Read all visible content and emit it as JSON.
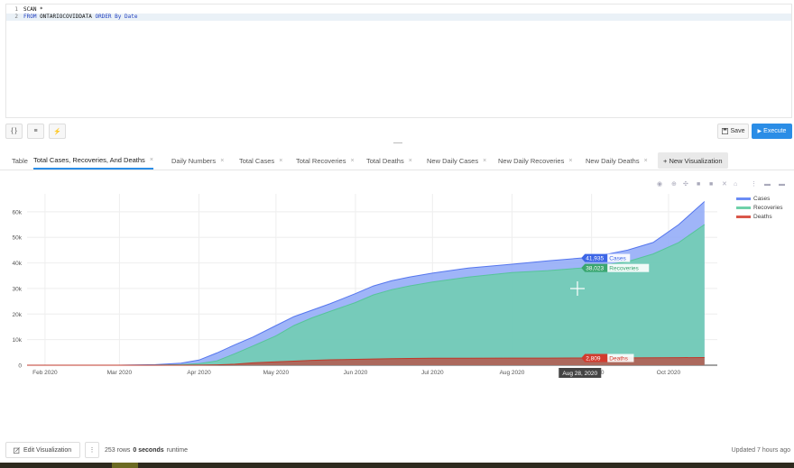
{
  "editor": {
    "lines": [
      {
        "num": "1",
        "tokens": [
          {
            "t": "SCAN *",
            "c": "ident"
          }
        ]
      },
      {
        "num": "2",
        "tokens": [
          {
            "t": "FROM ",
            "c": "kw"
          },
          {
            "t": "ONTARIOCOVIDDATA ",
            "c": "ident"
          },
          {
            "t": "ORDER By Date",
            "c": "kw"
          }
        ]
      }
    ]
  },
  "toolbar": {
    "format_label": "{ }",
    "indent_label": "≡",
    "autocomplete_label": "⚡",
    "save_label": "Save",
    "execute_label": "Execute"
  },
  "tabs": [
    {
      "label": "Table",
      "closable": false
    },
    {
      "label": "Total Cases, Recoveries, And Deaths",
      "closable": true,
      "active": true
    },
    {
      "label": "Daily Numbers",
      "closable": true
    },
    {
      "label": "Total Cases",
      "closable": true
    },
    {
      "label": "Total Recoveries",
      "closable": true
    },
    {
      "label": "Total Deaths",
      "closable": true
    },
    {
      "label": "New Daily Cases",
      "closable": true
    },
    {
      "label": "New Daily Recoveries",
      "closable": true
    },
    {
      "label": "New Daily Deaths",
      "closable": true
    }
  ],
  "new_viz_label": "+ New Visualization",
  "modebar_icons": [
    "camera-icon",
    "zoom-icon",
    "pan-icon",
    "zoom-in-icon",
    "zoom-out-icon",
    "autoscale-icon",
    "reset-axes-icon",
    "spike-lines-icon",
    "hover-closest-icon",
    "hover-compare-icon"
  ],
  "colors": {
    "cases": "#6b8cf5",
    "recoveries": "#6fd1a9",
    "deaths": "#d9574a",
    "accent": "#2b8de6"
  },
  "chart_data": {
    "type": "area",
    "x": [
      "2020-01-25",
      "2020-02-15",
      "2020-03-01",
      "2020-03-15",
      "2020-03-25",
      "2020-04-01",
      "2020-04-08",
      "2020-04-15",
      "2020-04-22",
      "2020-05-01",
      "2020-05-08",
      "2020-05-15",
      "2020-05-22",
      "2020-06-01",
      "2020-06-08",
      "2020-06-15",
      "2020-06-22",
      "2020-07-01",
      "2020-07-15",
      "2020-08-01",
      "2020-08-15",
      "2020-08-28",
      "2020-09-05",
      "2020-09-15",
      "2020-09-25",
      "2020-10-05",
      "2020-10-15"
    ],
    "series": [
      {
        "name": "Cases",
        "values": [
          0,
          0,
          5,
          200,
          800,
          2000,
          4800,
          8000,
          11000,
          15500,
          19000,
          21500,
          24000,
          28000,
          31000,
          33000,
          34500,
          36000,
          38000,
          39500,
          40800,
          41935,
          43000,
          45000,
          48000,
          55000,
          64000
        ]
      },
      {
        "name": "Recoveries",
        "values": [
          0,
          0,
          0,
          50,
          200,
          600,
          1700,
          4500,
          7500,
          11500,
          15500,
          18500,
          21000,
          24500,
          27500,
          29500,
          31000,
          32500,
          34500,
          36200,
          37000,
          38023,
          39000,
          40500,
          43500,
          48000,
          55000
        ]
      },
      {
        "name": "Deaths",
        "values": [
          0,
          0,
          0,
          0,
          10,
          50,
          150,
          400,
          900,
          1300,
          1600,
          1900,
          2100,
          2300,
          2450,
          2550,
          2650,
          2700,
          2750,
          2790,
          2800,
          2809,
          2820,
          2850,
          2900,
          2950,
          3000
        ]
      }
    ],
    "x_ticks": [
      {
        "label": "Feb 2020",
        "date": "2020-02-01"
      },
      {
        "label": "Mar 2020",
        "date": "2020-03-01"
      },
      {
        "label": "Apr 2020",
        "date": "2020-04-01"
      },
      {
        "label": "May 2020",
        "date": "2020-05-01"
      },
      {
        "label": "Jun 2020",
        "date": "2020-06-01"
      },
      {
        "label": "Jul 2020",
        "date": "2020-07-01"
      },
      {
        "label": "Aug 2020",
        "date": "2020-08-01"
      },
      {
        "label": "Sep 2020",
        "date": "2020-09-01"
      },
      {
        "label": "Oct 2020",
        "date": "2020-10-01"
      }
    ],
    "y_ticks": [
      {
        "label": "0",
        "value": 0
      },
      {
        "label": "10k",
        "value": 10000
      },
      {
        "label": "20k",
        "value": 20000
      },
      {
        "label": "30k",
        "value": 30000
      },
      {
        "label": "40k",
        "value": 40000
      },
      {
        "label": "50k",
        "value": 50000
      },
      {
        "label": "60k",
        "value": 60000
      }
    ],
    "xlim": [
      "2020-01-25",
      "2020-10-20"
    ],
    "ylim": [
      0,
      67000
    ],
    "grid": true,
    "legend": "top-right",
    "hover": {
      "date": "2020-08-28",
      "date_label": "Aug 28, 2020",
      "labels": [
        {
          "series": "Cases",
          "value": 41935,
          "text": "41,935"
        },
        {
          "series": "Recoveries",
          "value": 38023,
          "text": "38,023"
        },
        {
          "series": "Deaths",
          "value": 2809,
          "text": "2,809"
        }
      ]
    }
  },
  "footer": {
    "edit_label": "Edit Visualization",
    "kebab_label": "⋮",
    "rows_count": "253 rows",
    "runtime": "0 seconds",
    "runtime_suffix": "runtime",
    "updated": "Updated 7 hours ago"
  }
}
